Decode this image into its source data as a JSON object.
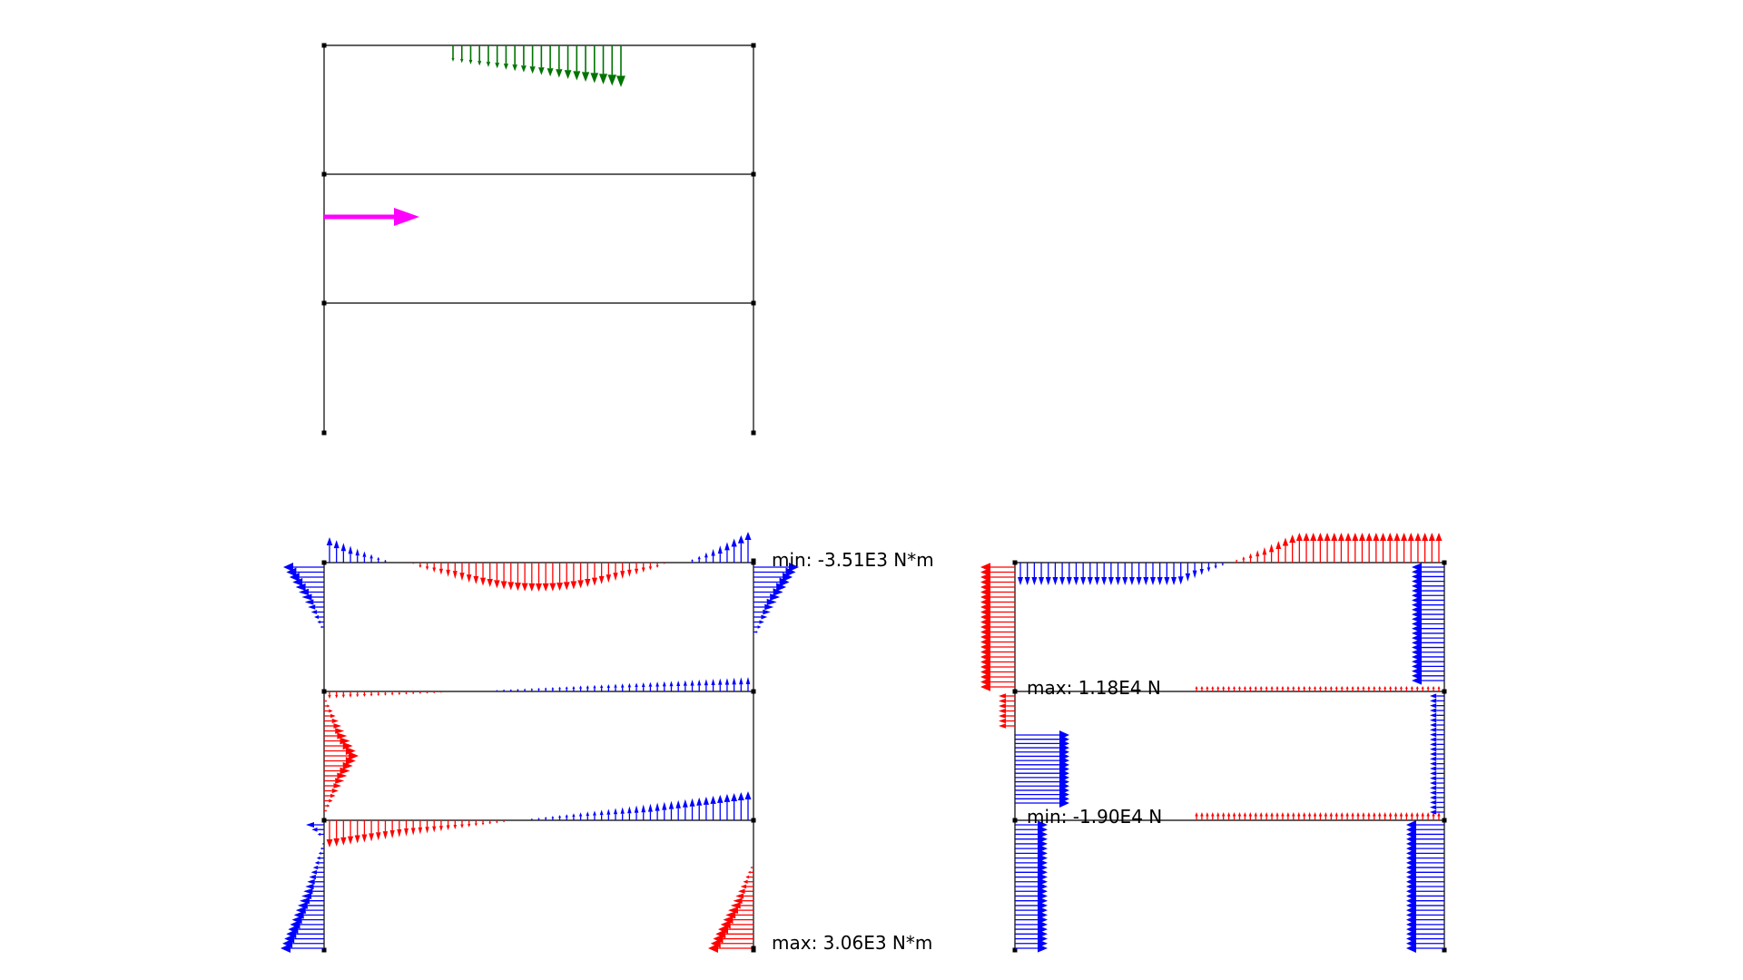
{
  "colors": {
    "frame": "#000000",
    "distributed_load": "#007400",
    "point_load": "#ff00ff",
    "positive": "#ff0000",
    "negative": "#0000ff",
    "background": "#ffffff"
  },
  "panels": [
    {
      "id": "model",
      "description_none": ""
    },
    {
      "id": "moment"
    },
    {
      "id": "axial"
    }
  ],
  "moment_diagram": {
    "min_label": "min: -3.51E3 N*m",
    "max_label": "max: 3.06E3 N*m",
    "min_value": -3510,
    "max_value": 3060,
    "unit": "N*m"
  },
  "axial_diagram": {
    "max_label": "max: 1.18E4 N",
    "min_label": "min: -1.90E4 N",
    "max_value": 11800,
    "min_value": -19000,
    "unit": "N"
  }
}
